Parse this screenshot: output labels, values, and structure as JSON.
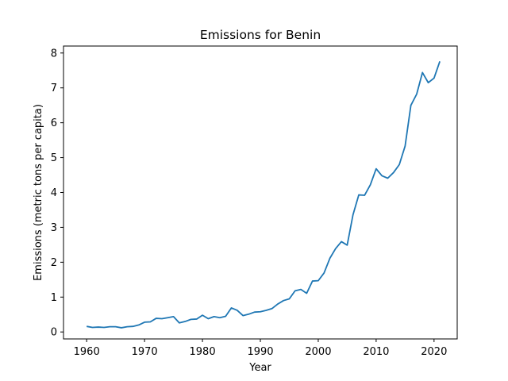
{
  "chart_data": {
    "type": "line",
    "title": "Emissions for Benin",
    "xlabel": "Year",
    "ylabel": "Emissions (metric tons per capita)",
    "xlim": [
      1956,
      2024
    ],
    "ylim": [
      -0.2,
      8.2
    ],
    "xticks": [
      1960,
      1970,
      1980,
      1990,
      2000,
      2010,
      2020
    ],
    "yticks": [
      0,
      1,
      2,
      3,
      4,
      5,
      6,
      7,
      8
    ],
    "grid": false,
    "line_color": "#1f77b4",
    "series": [
      {
        "x": [
          1960,
          1961,
          1962,
          1963,
          1964,
          1965,
          1966,
          1967,
          1968,
          1969,
          1970,
          1971,
          1972,
          1973,
          1974,
          1975,
          1976,
          1977,
          1978,
          1979,
          1980,
          1981,
          1982,
          1983,
          1984,
          1985,
          1986,
          1987,
          1988,
          1989,
          1990,
          1991,
          1992,
          1993,
          1994,
          1995,
          1996,
          1997,
          1998,
          1999,
          2000,
          2001,
          2002,
          2003,
          2004,
          2005,
          2006,
          2007,
          2008,
          2009,
          2010,
          2011,
          2012,
          2013,
          2014,
          2015,
          2016,
          2017,
          2018,
          2019,
          2020,
          2021
        ],
        "values": [
          0.16,
          0.13,
          0.14,
          0.13,
          0.15,
          0.15,
          0.12,
          0.15,
          0.16,
          0.2,
          0.28,
          0.29,
          0.39,
          0.38,
          0.41,
          0.44,
          0.26,
          0.3,
          0.36,
          0.37,
          0.48,
          0.38,
          0.44,
          0.41,
          0.45,
          0.69,
          0.62,
          0.47,
          0.51,
          0.57,
          0.58,
          0.62,
          0.67,
          0.8,
          0.9,
          0.95,
          1.18,
          1.22,
          1.11,
          1.46,
          1.47,
          1.69,
          2.11,
          2.39,
          2.59,
          2.49,
          3.36,
          3.93,
          3.92,
          4.22,
          4.68,
          4.48,
          4.41,
          4.57,
          4.8,
          5.33,
          6.5,
          6.82,
          7.44,
          7.15,
          7.28,
          7.76
        ]
      }
    ]
  }
}
